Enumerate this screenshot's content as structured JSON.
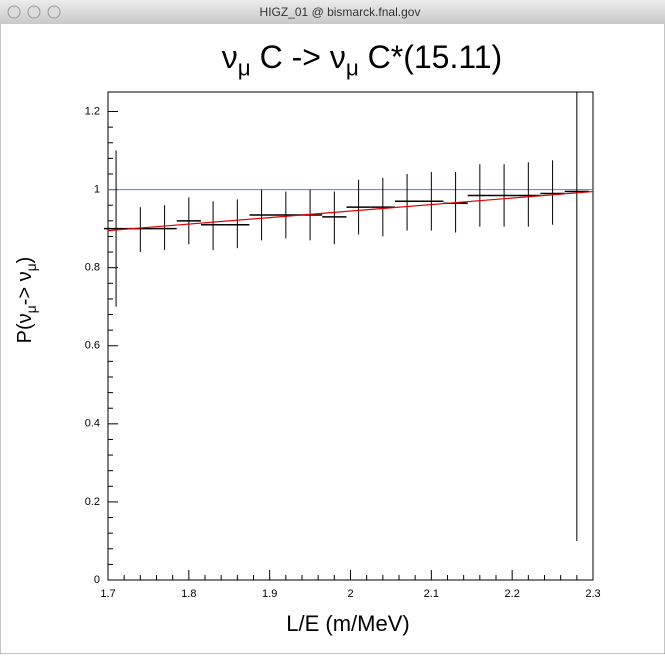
{
  "window": {
    "title": "HIGZ_01 @ bismarck.fnal.gov"
  },
  "chart_data": {
    "type": "errorbar",
    "title": [
      "ν",
      "μ",
      " C -> ν",
      "μ",
      " C*(15.11)"
    ],
    "ylabel": [
      "P(ν",
      "μ",
      "-> ν",
      "μ",
      ")"
    ],
    "xlabel": "L/E (m/MeV)",
    "xlim": [
      1.7,
      2.3
    ],
    "ylim": [
      0,
      1.25
    ],
    "xticks": [
      1.7,
      1.8,
      1.9,
      2,
      2.1,
      2.2,
      2.3
    ],
    "yticks": [
      0,
      0.2,
      0.4,
      0.6,
      0.8,
      1,
      1.2
    ],
    "bin_width": 0.03,
    "x": [
      1.71,
      1.74,
      1.77,
      1.8,
      1.83,
      1.86,
      1.89,
      1.92,
      1.95,
      1.98,
      2.01,
      2.04,
      2.07,
      2.1,
      2.13,
      2.16,
      2.19,
      2.22,
      2.25,
      2.28
    ],
    "values": [
      0.9,
      0.9,
      0.9,
      0.92,
      0.91,
      0.91,
      0.935,
      0.935,
      0.935,
      0.93,
      0.955,
      0.955,
      0.97,
      0.97,
      0.965,
      0.985,
      0.985,
      0.985,
      0.99,
      0.995
    ],
    "low": [
      0.7,
      0.84,
      0.845,
      0.86,
      0.845,
      0.85,
      0.87,
      0.875,
      0.87,
      0.86,
      0.885,
      0.88,
      0.895,
      0.895,
      0.89,
      0.905,
      0.905,
      0.905,
      0.91,
      0.1
    ],
    "high": [
      1.1,
      0.955,
      0.96,
      0.98,
      0.97,
      0.975,
      1.0,
      0.995,
      1.0,
      0.995,
      1.025,
      1.03,
      1.04,
      1.045,
      1.045,
      1.065,
      1.065,
      1.07,
      1.075,
      1.25
    ],
    "color": "#000000",
    "fit": {
      "x": [
        1.7,
        2.3
      ],
      "y": [
        0.895,
        0.995
      ],
      "color": "#e00000"
    },
    "reference": {
      "y": 1,
      "color": "#5577ee"
    }
  }
}
